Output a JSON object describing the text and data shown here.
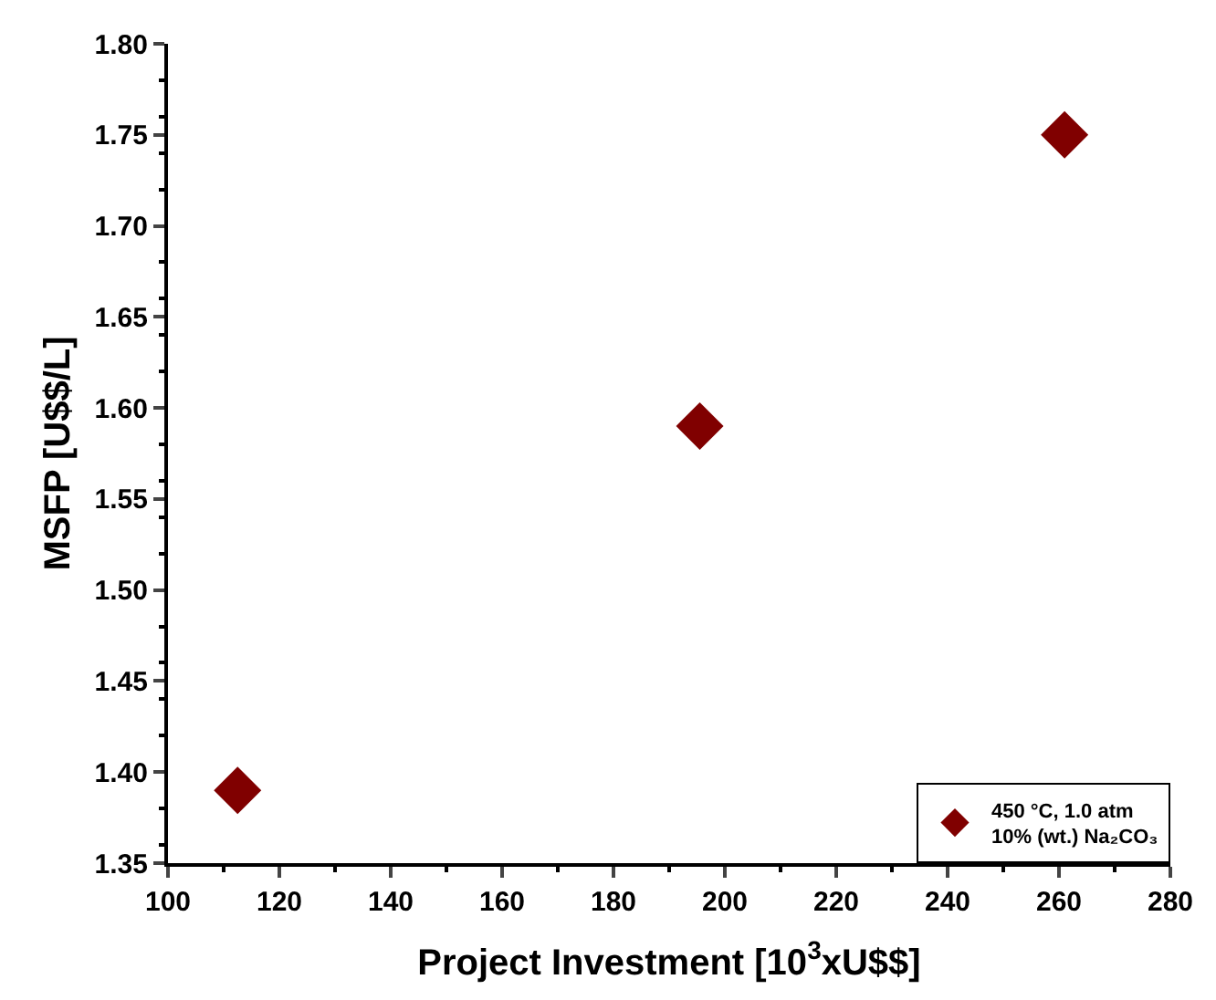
{
  "chart_data": {
    "type": "scatter",
    "xlabel": "Project Investment [10$^{3}$xU$$]",
    "ylabel": "MSFP [U$$/L]",
    "x": [
      112.5,
      195.5,
      261
    ],
    "series": [
      {
        "name": "450 °C, 1.0 atm\n10% (wt.) Na₂CO₃",
        "color": "#800000",
        "values": [
          1.39,
          1.59,
          1.75
        ]
      }
    ],
    "xlim": [
      100,
      280
    ],
    "xticks": [
      100,
      120,
      140,
      160,
      180,
      200,
      220,
      240,
      260,
      280
    ],
    "ylim": [
      1.35,
      1.8
    ],
    "yticks": [
      1.35,
      {
        "value": 1.4,
        "label": "1.40"
      },
      1.45,
      {
        "value": 1.5,
        "label": "1.50"
      },
      1.55,
      {
        "value": 1.6,
        "label": "1.60"
      },
      1.65,
      {
        "value": 1.7,
        "label": "1.70"
      },
      1.75,
      {
        "value": 1.8,
        "label": "1.80"
      }
    ],
    "marker": "diamond",
    "legend": "bottom right"
  }
}
